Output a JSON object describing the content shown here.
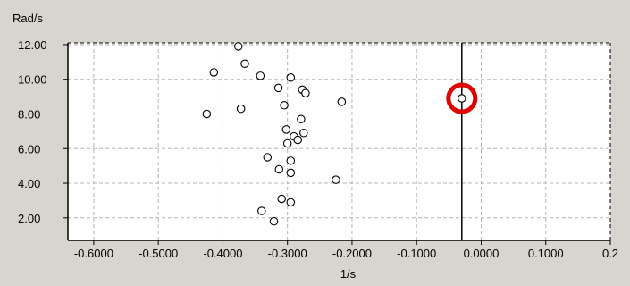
{
  "chart_data": {
    "type": "scatter",
    "ylabel": "Rad/s",
    "xlabel": "1/s",
    "xlim": [
      -0.64,
      0.2
    ],
    "ylim": [
      0.7,
      12.1
    ],
    "x_ticks": [
      {
        "value": -0.6,
        "label": "-0.6000"
      },
      {
        "value": -0.5,
        "label": "-0.5000"
      },
      {
        "value": -0.4,
        "label": "-0.4000"
      },
      {
        "value": -0.3,
        "label": "-0.3000"
      },
      {
        "value": -0.2,
        "label": "-0.2000"
      },
      {
        "value": -0.1,
        "label": "-0.1000"
      },
      {
        "value": 0.0,
        "label": "0.0000"
      },
      {
        "value": 0.1,
        "label": "0.1000"
      },
      {
        "value": 0.2,
        "label": "0.2"
      }
    ],
    "y_ticks": [
      {
        "value": 2,
        "label": "2.00"
      },
      {
        "value": 4,
        "label": "4.00"
      },
      {
        "value": 6,
        "label": "6.00"
      },
      {
        "value": 8,
        "label": "8.00"
      },
      {
        "value": 10,
        "label": "10.00"
      },
      {
        "value": 12,
        "label": "12.00"
      }
    ],
    "grid": true,
    "vertical_line_x": -0.03,
    "points": [
      {
        "x": -0.376,
        "y": 11.9
      },
      {
        "x": -0.366,
        "y": 10.9
      },
      {
        "x": -0.414,
        "y": 10.4
      },
      {
        "x": -0.342,
        "y": 10.2
      },
      {
        "x": -0.295,
        "y": 10.1
      },
      {
        "x": -0.314,
        "y": 9.5
      },
      {
        "x": -0.277,
        "y": 9.4
      },
      {
        "x": -0.272,
        "y": 9.2
      },
      {
        "x": -0.216,
        "y": 8.7
      },
      {
        "x": -0.305,
        "y": 8.5
      },
      {
        "x": -0.372,
        "y": 8.3
      },
      {
        "x": -0.425,
        "y": 8.0
      },
      {
        "x": -0.279,
        "y": 7.7
      },
      {
        "x": -0.302,
        "y": 7.1
      },
      {
        "x": -0.275,
        "y": 6.9
      },
      {
        "x": -0.29,
        "y": 6.7
      },
      {
        "x": -0.284,
        "y": 6.5
      },
      {
        "x": -0.3,
        "y": 6.3
      },
      {
        "x": -0.331,
        "y": 5.5
      },
      {
        "x": -0.295,
        "y": 5.3
      },
      {
        "x": -0.313,
        "y": 4.8
      },
      {
        "x": -0.295,
        "y": 4.6
      },
      {
        "x": -0.225,
        "y": 4.2
      },
      {
        "x": -0.309,
        "y": 3.1
      },
      {
        "x": -0.295,
        "y": 2.9
      },
      {
        "x": -0.34,
        "y": 2.4
      },
      {
        "x": -0.321,
        "y": 1.8
      },
      {
        "x": -0.03,
        "y": 8.9
      }
    ],
    "highlight_point": {
      "x": -0.03,
      "y": 8.9,
      "color": "#e00000"
    },
    "colors": {
      "background": "#d8d4ce",
      "plot_area": "#ffffff",
      "marker": "#000000",
      "grid": "#b4b4b4",
      "highlight": "#e00000"
    }
  }
}
